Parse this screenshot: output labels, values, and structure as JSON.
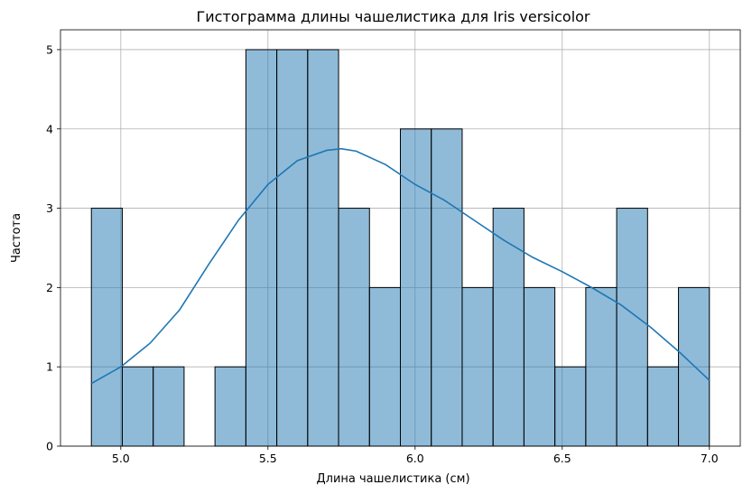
{
  "chart_data": {
    "type": "bar",
    "subtype": "histogram",
    "title": "Гистограмма длины чашелистика для Iris versicolor",
    "xlabel": "Длина чашелистика (см)",
    "ylabel": "Частота",
    "xlim": [
      4.795,
      7.105
    ],
    "ylim": [
      0,
      5.25
    ],
    "xticks": [
      5.0,
      5.5,
      6.0,
      6.5,
      7.0
    ],
    "xtick_labels": [
      "5.0",
      "5.5",
      "6.0",
      "6.5",
      "7.0"
    ],
    "yticks": [
      0,
      1,
      2,
      3,
      4,
      5
    ],
    "ytick_labels": [
      "0",
      "1",
      "2",
      "3",
      "4",
      "5"
    ],
    "grid": true,
    "bar_color": "#1f77b4",
    "bins": {
      "start": 4.9,
      "end": 7.0,
      "count": 20,
      "values": [
        3,
        1,
        1,
        0,
        1,
        5,
        5,
        5,
        3,
        2,
        4,
        4,
        2,
        3,
        2,
        1,
        2,
        3,
        1,
        2
      ]
    },
    "kde": {
      "color": "#1f77b4",
      "x": [
        4.9,
        5.0,
        5.1,
        5.2,
        5.3,
        5.4,
        5.5,
        5.6,
        5.7,
        5.75,
        5.8,
        5.9,
        6.0,
        6.1,
        6.2,
        6.3,
        6.4,
        6.5,
        6.6,
        6.7,
        6.8,
        6.9,
        7.0
      ],
      "y": [
        0.79,
        1.0,
        1.3,
        1.72,
        2.3,
        2.85,
        3.3,
        3.6,
        3.73,
        3.75,
        3.72,
        3.55,
        3.3,
        3.1,
        2.85,
        2.6,
        2.38,
        2.2,
        2.0,
        1.78,
        1.5,
        1.18,
        0.83
      ]
    }
  }
}
